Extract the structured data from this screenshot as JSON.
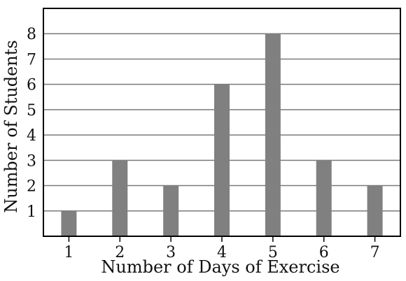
{
  "chart_data": {
    "type": "bar",
    "categories": [
      "1",
      "2",
      "3",
      "4",
      "5",
      "6",
      "7"
    ],
    "values": [
      1,
      3,
      2,
      6,
      8,
      3,
      2
    ],
    "xlabel": "Number of Days of Exercise",
    "ylabel": "Number of Students",
    "ylim": [
      0,
      9
    ],
    "yticks": [
      1,
      2,
      3,
      4,
      5,
      6,
      7,
      8
    ],
    "grid": "horizontal",
    "bar_color": "#808080",
    "grid_color": "#7a7a7a",
    "axis_color": "#000000"
  }
}
